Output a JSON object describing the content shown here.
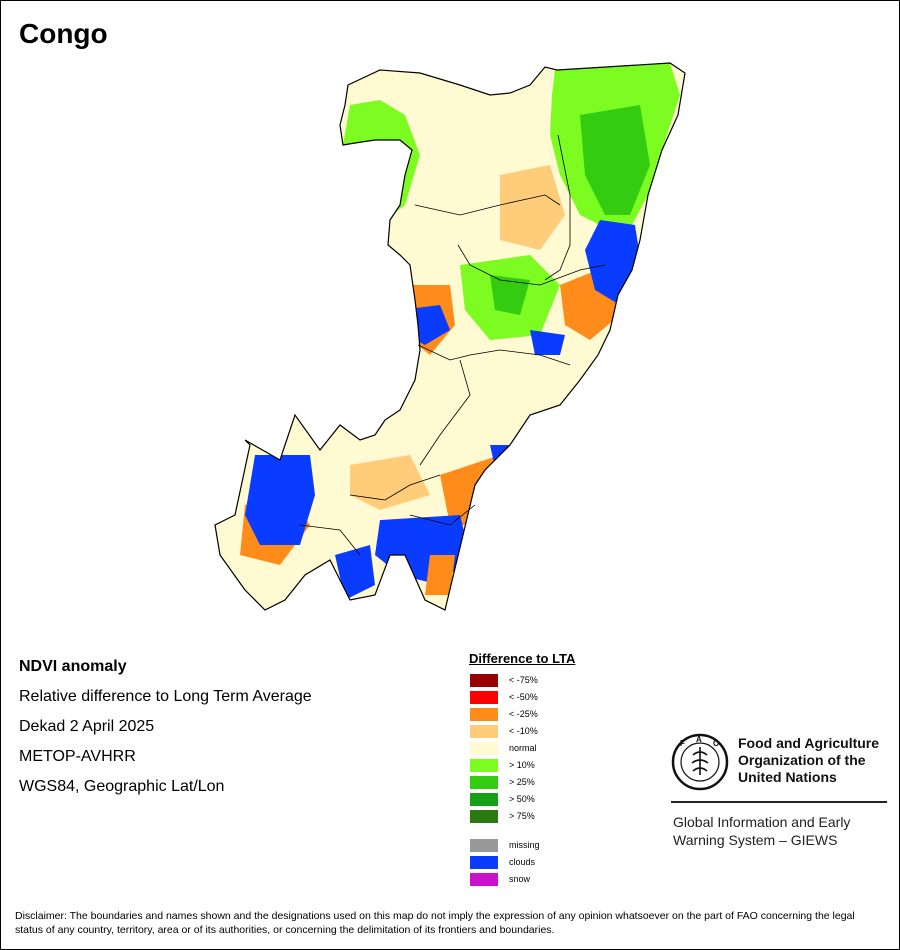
{
  "title": "Congo",
  "info": {
    "product": "NDVI anomaly",
    "description": "Relative difference to Long Term Average",
    "period": "Dekad 2 April 2025",
    "sensor": "METOP-AVHRR",
    "projection": "WGS84, Geographic Lat/Lon"
  },
  "legend": {
    "title": "Difference to LTA",
    "items": [
      {
        "label": "< -75%",
        "color": "#990000"
      },
      {
        "label": "< -50%",
        "color": "#ff0000"
      },
      {
        "label": "< -25%",
        "color": "#ff8c1a"
      },
      {
        "label": "< -10%",
        "color": "#ffcc7a"
      },
      {
        "label": "normal",
        "color": "#fffad2"
      },
      {
        "label": "> 10%",
        "color": "#7cfc20"
      },
      {
        "label": "> 25%",
        "color": "#33cc11"
      },
      {
        "label": "> 50%",
        "color": "#15a015"
      },
      {
        "label": "> 75%",
        "color": "#2a7a10"
      }
    ],
    "extra": [
      {
        "label": "missing",
        "color": "#999999"
      },
      {
        "label": "clouds",
        "color": "#0a3cff"
      },
      {
        "label": "snow",
        "color": "#cc11cc"
      }
    ]
  },
  "logo": {
    "org_name": "Food and Agriculture Organization of the United Nations",
    "system_name": "Global Information and Early Warning System – GIEWS"
  },
  "disclaimer": "Disclaimer: The boundaries and names shown and the designations used on this map do not imply the expression of any opinion whatsoever on the part of FAO concerning the legal status of any country, territory, area or of its authorities, or concerning the delimitation of its frontiers and boundaries."
}
